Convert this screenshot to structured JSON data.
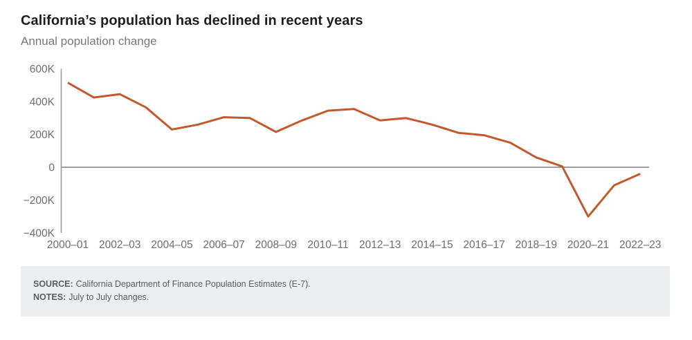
{
  "header": {
    "title": "California’s population has declined in recent years",
    "subtitle": "Annual population change"
  },
  "chart_data": {
    "type": "line",
    "title": "California’s population has declined in recent years",
    "subtitle": "Annual population change",
    "unit": "persons, in thousands (K)",
    "categories": [
      "2000–01",
      "2001–02",
      "2002–03",
      "2003–04",
      "2004–05",
      "2005–06",
      "2006–07",
      "2007–08",
      "2008–09",
      "2009–10",
      "2010–11",
      "2011–12",
      "2012–13",
      "2013–14",
      "2014–15",
      "2015–16",
      "2016–17",
      "2017–18",
      "2018–19",
      "2019–20",
      "2020–21",
      "2021–22",
      "2022–23"
    ],
    "values_thousands": [
      515,
      425,
      445,
      365,
      230,
      260,
      305,
      300,
      215,
      285,
      345,
      355,
      285,
      300,
      260,
      210,
      195,
      150,
      60,
      5,
      -300,
      -110,
      -40
    ],
    "x_tick_labels": [
      "2000–01",
      "2002–03",
      "2004–05",
      "2006–07",
      "2008–09",
      "2010–11",
      "2012–13",
      "2014–15",
      "2016–17",
      "2018–19",
      "2020–21",
      "2022–23"
    ],
    "x_tick_every": 2,
    "y_ticks": [
      {
        "value": 600,
        "label": "600K"
      },
      {
        "value": 400,
        "label": "400K"
      },
      {
        "value": 200,
        "label": "200K"
      },
      {
        "value": 0,
        "label": "0"
      },
      {
        "value": -200,
        "label": "−200K"
      },
      {
        "value": -400,
        "label": "−400K"
      }
    ],
    "ylim": [
      -400,
      600
    ],
    "grid": "zero-baseline-only",
    "legend": "none",
    "colors": {
      "line": "#C2582C",
      "axis": "#9A9DA1",
      "tick_labels": "#6A6E73"
    }
  },
  "footer": {
    "source_label": "SOURCE:",
    "source_text": "California Department of Finance Population Estimates (E-7).",
    "notes_label": "NOTES:",
    "notes_text": "July to July changes."
  }
}
